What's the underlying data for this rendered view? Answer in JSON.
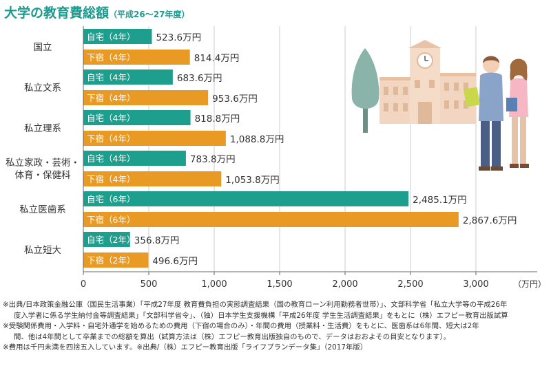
{
  "title": "大学の教育費総額",
  "subtitle": "（平成26～27年度）",
  "chart_data": {
    "type": "bar",
    "orientation": "horizontal",
    "title": "大学の教育費総額",
    "subtitle": "（平成26～27年度）",
    "x_unit_label": "（万円）",
    "xlim": [
      0,
      3000
    ],
    "x_ticks": [
      "0",
      "500",
      "1,000",
      "1,500",
      "2,000",
      "2,500",
      "3,000"
    ],
    "x_tick_values": [
      0,
      500,
      1000,
      1500,
      2000,
      2500,
      3000
    ],
    "colors": {
      "home": "#1e9e8d",
      "lodging": "#e89a25"
    },
    "groups": [
      {
        "category": "国立",
        "bars": [
          {
            "label": "自宅（4年）",
            "kind": "home",
            "value": 523.6,
            "value_label": "523.6万円"
          },
          {
            "label": "下宿（4年）",
            "kind": "lodging",
            "value": 814.4,
            "value_label": "814.4万円"
          }
        ]
      },
      {
        "category": "私立文系",
        "bars": [
          {
            "label": "自宅（4年）",
            "kind": "home",
            "value": 683.6,
            "value_label": "683.6万円"
          },
          {
            "label": "下宿（4年）",
            "kind": "lodging",
            "value": 953.6,
            "value_label": "953.6万円"
          }
        ]
      },
      {
        "category": "私立理系",
        "bars": [
          {
            "label": "自宅（4年）",
            "kind": "home",
            "value": 818.8,
            "value_label": "818.8万円"
          },
          {
            "label": "下宿（4年）",
            "kind": "lodging",
            "value": 1088.8,
            "value_label": "1,088.8万円"
          }
        ]
      },
      {
        "category": "私立家政・芸術・\n体育・保健科",
        "bars": [
          {
            "label": "自宅（4年）",
            "kind": "home",
            "value": 783.8,
            "value_label": "783.8万円"
          },
          {
            "label": "下宿（4年）",
            "kind": "lodging",
            "value": 1053.8,
            "value_label": "1,053.8万円"
          }
        ]
      },
      {
        "category": "私立医歯系",
        "bars": [
          {
            "label": "自宅（6年）",
            "kind": "home",
            "value": 2485.1,
            "value_label": "2,485.1万円"
          },
          {
            "label": "下宿（6年）",
            "kind": "lodging",
            "value": 2867.6,
            "value_label": "2,867.6万円"
          }
        ]
      },
      {
        "category": "私立短大",
        "bars": [
          {
            "label": "自宅（2年）",
            "kind": "home",
            "value": 356.8,
            "value_label": "356.8万円"
          },
          {
            "label": "下宿（2年）",
            "kind": "lodging",
            "value": 496.6,
            "value_label": "496.6万円"
          }
        ]
      }
    ]
  },
  "notes": [
    {
      "text": "※出典/日本政策金融公庫（国民生活事業）「平成27年度 教育費負担の実態調査結果（国の教育ローン利用勤務者世帯）」、文部科学省「私立大学等の平成26年",
      "cont": false
    },
    {
      "text": "度入学者に係る学生納付金等調査結果」「文部科学省令」、（独）日本学生支援機構「平成26年度 学生生活調査結果」をもとに（株）エフピー教育出版試算",
      "cont": true
    },
    {
      "text": "※受験関係費用・入学料・自宅外通学を始めるための費用（下宿の場合のみ）・年間の費用（授業料・生活費）をもとに、医歯系は6年間、短大は2年",
      "cont": false
    },
    {
      "text": "間、他は4年間として卒業までの総額を算出（試算方法は（株）エフピー教育出版独自のもので、データはおおよその目安となります）。",
      "cont": true
    },
    {
      "text": "※費用は千円未満を四捨五入しています。※出典/（株）エフピー教育出版「ライフプランデータ集」（2017年版）",
      "cont": false
    }
  ],
  "illustration": {
    "icons": [
      "tree-icon",
      "school-building-icon",
      "clock-icon",
      "male-student-icon",
      "female-student-icon"
    ],
    "colors": {
      "building": "#f2d6c1",
      "tree": "#8ab3a9",
      "student_jacket": "#8aa3c8",
      "student_shirt": "#f7b6c4"
    }
  }
}
